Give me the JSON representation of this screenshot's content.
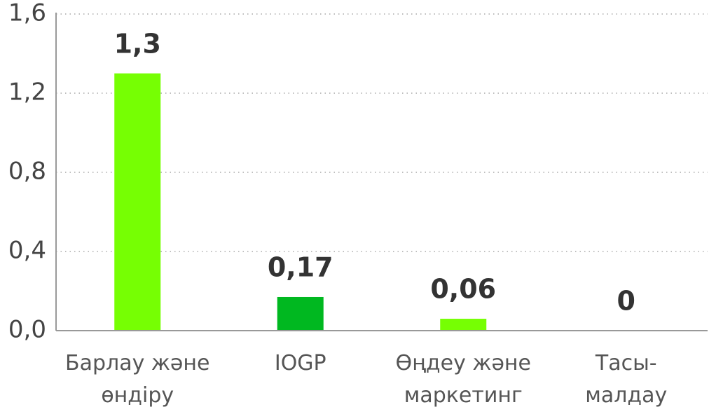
{
  "chart_data": {
    "type": "bar",
    "categories": [
      "Барлау және\nөндіру",
      "IOGP",
      "Өңдеу және\nмаркетинг",
      "Тасы-\nмалдау"
    ],
    "values": [
      1.3,
      0.17,
      0.06,
      0
    ],
    "value_labels": [
      "1,3",
      "0,17",
      "0,06",
      "0"
    ],
    "colors": [
      "#76ff03",
      "#00b820",
      "#76ff03",
      "#76ff03"
    ],
    "ylim": [
      0,
      1.6
    ],
    "yticks": [
      {
        "value": 0,
        "label": "0,0"
      },
      {
        "value": 0.4,
        "label": "0,4"
      },
      {
        "value": 0.8,
        "label": "0,8"
      },
      {
        "value": 1.2,
        "label": "1,2"
      },
      {
        "value": 1.6,
        "label": "1,6"
      }
    ],
    "grid": true
  }
}
